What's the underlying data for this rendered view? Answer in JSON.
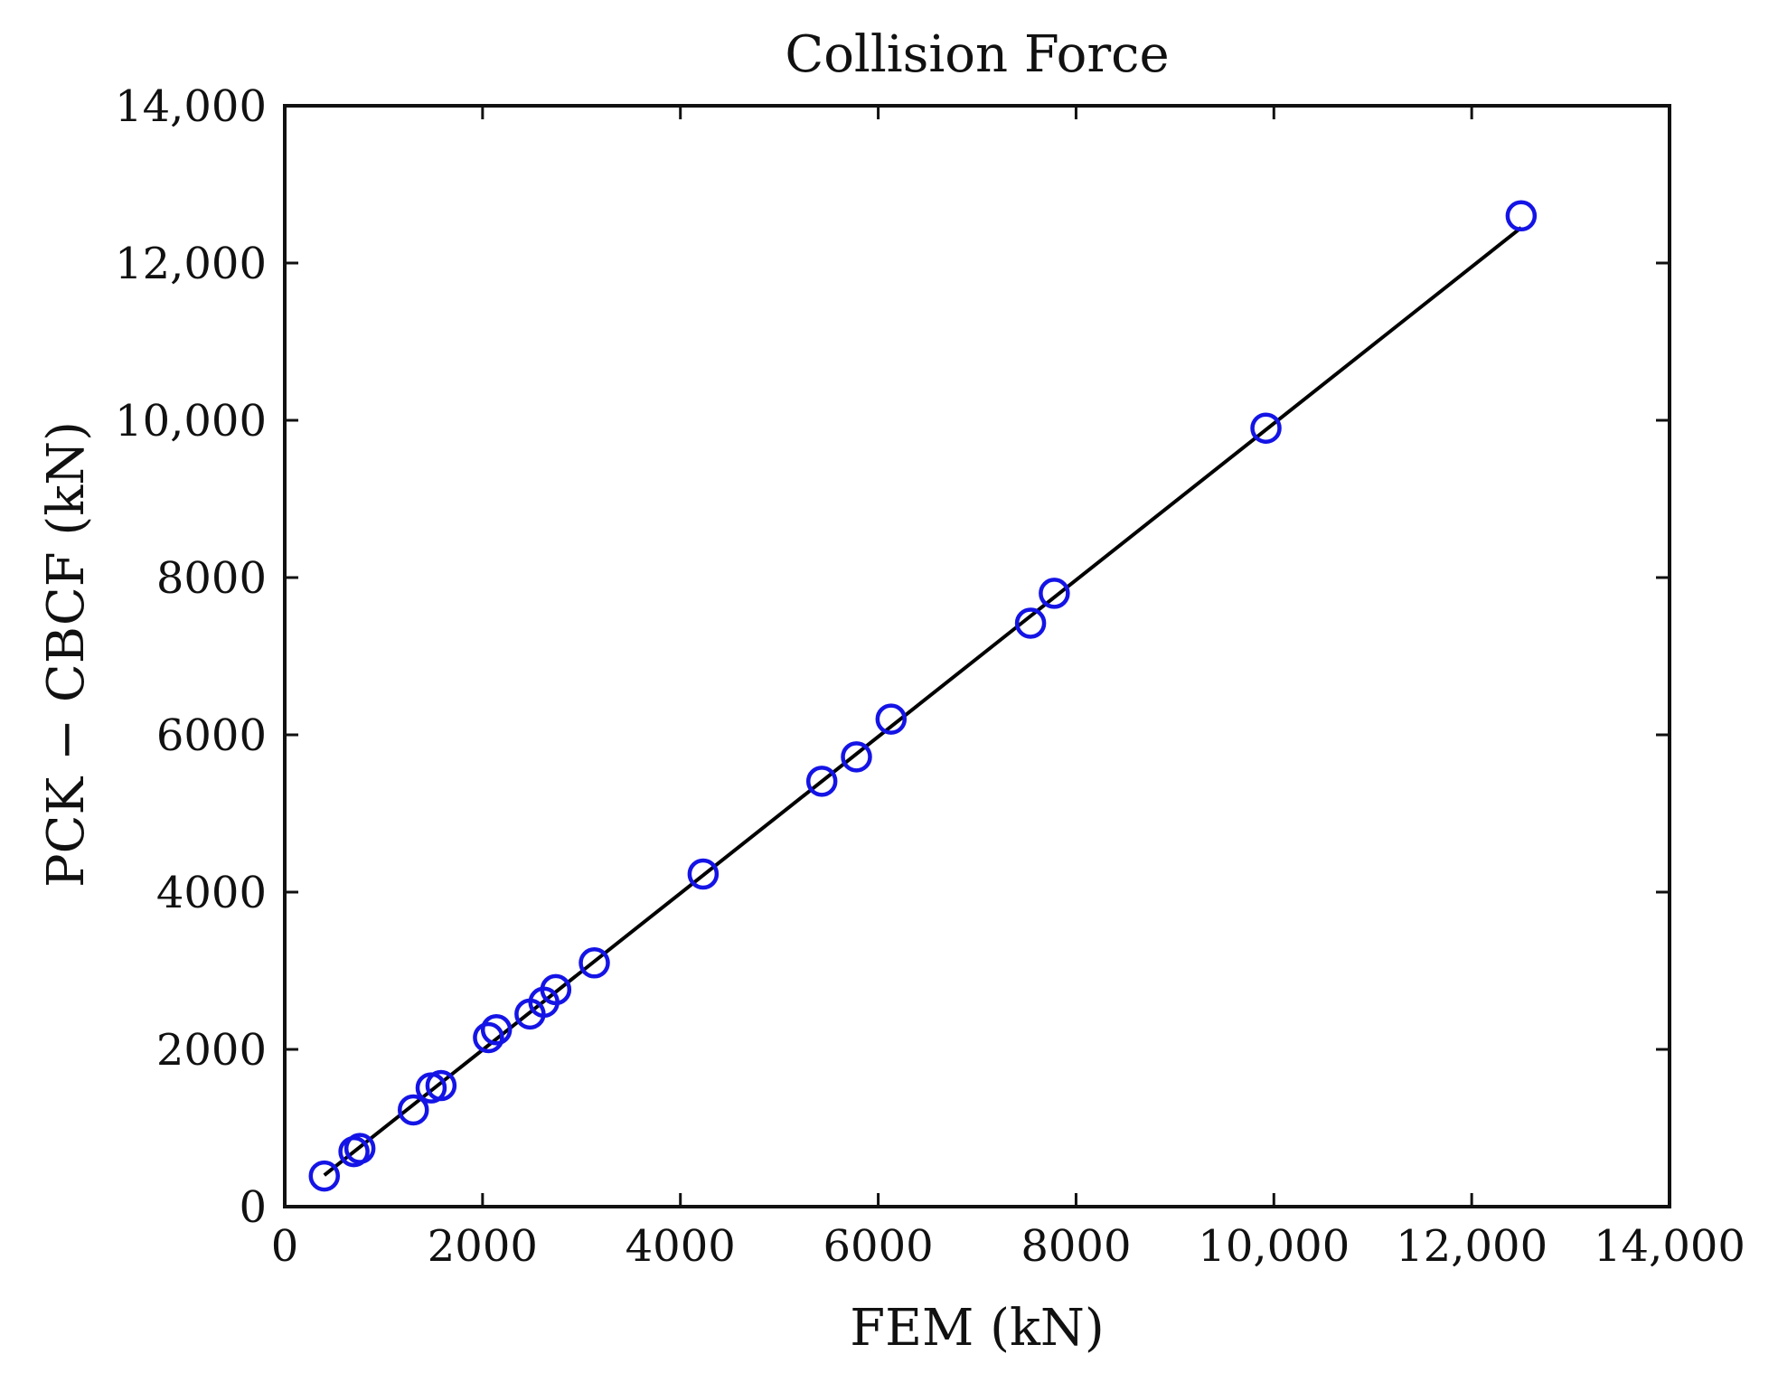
{
  "chart_data": {
    "type": "scatter",
    "title": "Collision Force",
    "xlabel": "FEM (kN)",
    "ylabel": "PCK − CBCF (kN)",
    "xlim": [
      0,
      14000
    ],
    "ylim": [
      0,
      14000
    ],
    "x_ticks": [
      0,
      2000,
      4000,
      6000,
      8000,
      10000,
      12000,
      14000
    ],
    "x_tick_labels": [
      "0",
      "2000",
      "4000",
      "6000",
      "8000",
      "10,000",
      "12,000",
      "14,000"
    ],
    "y_ticks": [
      0,
      2000,
      4000,
      6000,
      8000,
      10000,
      12000,
      14000
    ],
    "y_tick_labels": [
      "0",
      "2000",
      "4000",
      "6000",
      "8000",
      "10,000",
      "12,000",
      "14,000"
    ],
    "grid": false,
    "legend": "none",
    "series": [
      {
        "kind": "scatter",
        "marker": "open-circle",
        "color": "#1414e6",
        "points": [
          {
            "x": 400,
            "y": 390
          },
          {
            "x": 700,
            "y": 700
          },
          {
            "x": 760,
            "y": 740
          },
          {
            "x": 1300,
            "y": 1230
          },
          {
            "x": 1480,
            "y": 1510
          },
          {
            "x": 1580,
            "y": 1540
          },
          {
            "x": 2060,
            "y": 2150
          },
          {
            "x": 2140,
            "y": 2250
          },
          {
            "x": 2480,
            "y": 2450
          },
          {
            "x": 2620,
            "y": 2600
          },
          {
            "x": 2740,
            "y": 2760
          },
          {
            "x": 3130,
            "y": 3100
          },
          {
            "x": 4230,
            "y": 4230
          },
          {
            "x": 5430,
            "y": 5410
          },
          {
            "x": 5780,
            "y": 5720
          },
          {
            "x": 6130,
            "y": 6200
          },
          {
            "x": 7540,
            "y": 7420
          },
          {
            "x": 7780,
            "y": 7800
          },
          {
            "x": 9920,
            "y": 9900
          },
          {
            "x": 12500,
            "y": 12600
          }
        ]
      },
      {
        "kind": "line",
        "color": "#000000",
        "x": [
          400,
          12500
        ],
        "y": [
          400,
          12450
        ]
      }
    ]
  }
}
